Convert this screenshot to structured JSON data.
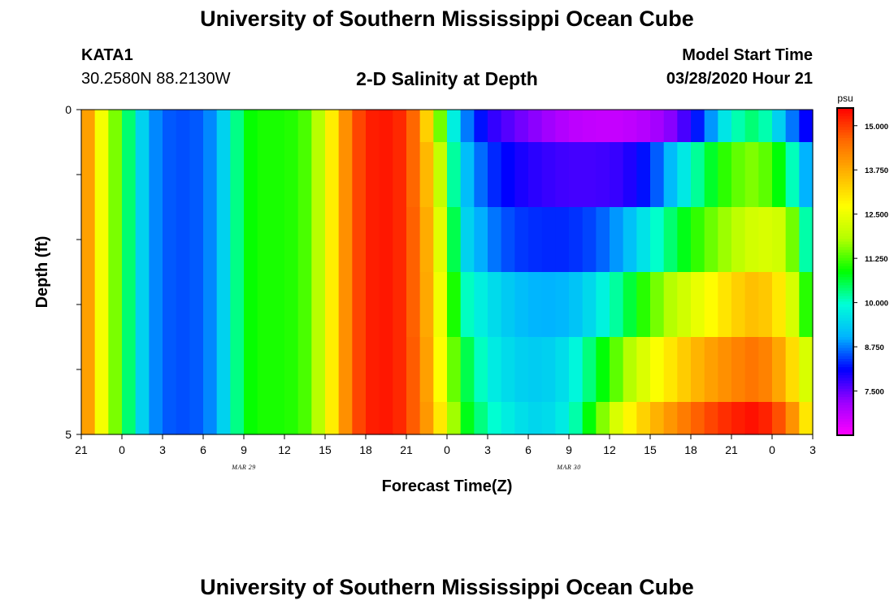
{
  "header": {
    "title": "University of Southern Mississippi Ocean Cube",
    "station_id": "KATA1",
    "station_location": "30.2580N 88.2130W",
    "plot_title": "2-D Salinity at Depth",
    "model_start_label": "Model Start Time",
    "model_start_value": "03/28/2020 Hour 21"
  },
  "footer": {
    "title": "University of Southern Mississippi Ocean Cube"
  },
  "chart_data": {
    "type": "heatmap",
    "title": "2-D Salinity at Depth",
    "xlabel": "Forecast Time(Z)",
    "ylabel": "Depth (ft)",
    "x_tick_labels": [
      "21",
      "0",
      "3",
      "6",
      "9",
      "12",
      "15",
      "18",
      "21",
      "0",
      "3",
      "6",
      "9",
      "12",
      "15",
      "18",
      "21",
      "0",
      "3"
    ],
    "x_date_labels": [
      {
        "label": "MAR 29",
        "at_tick": 4
      },
      {
        "label": "MAR 30",
        "at_tick": 12
      }
    ],
    "y_tick_labels": [
      {
        "label": "0",
        "depth": 0
      },
      {
        "label": "5",
        "depth": 5
      }
    ],
    "y_minor_ticks": [
      1,
      2,
      3,
      4
    ],
    "ylim": [
      0,
      5
    ],
    "colorbar": {
      "unit": "psu",
      "min": 6.25,
      "max": 15.5,
      "tick_labels": [
        "15.000",
        "13.750",
        "12.500",
        "11.250",
        "10.000",
        "8.750",
        "7.500"
      ],
      "tick_values": [
        15.0,
        13.75,
        12.5,
        11.25,
        10.0,
        8.75,
        7.5
      ],
      "colors": [
        "#ff00ff",
        "#9d00ff",
        "#0000ff",
        "#00b4ff",
        "#00ffd8",
        "#00ff00",
        "#b4ff00",
        "#ffff00",
        "#ffb400",
        "#ff6a00",
        "#ff0000"
      ]
    },
    "time_keypoints_hours": [
      0,
      1,
      2,
      3,
      4,
      5,
      6,
      7,
      8,
      9,
      10,
      11,
      12,
      13,
      14,
      15,
      16,
      17,
      18,
      19,
      20,
      21,
      22,
      23,
      24,
      25,
      26,
      27,
      28,
      30,
      32,
      34,
      36,
      38,
      40,
      42,
      44,
      46,
      48,
      50,
      52,
      54
    ],
    "rows": [
      {
        "depth_range": [
          0.0,
          0.5
        ],
        "salinity": [
          14.6,
          13.2,
          12.0,
          11.0,
          9.8,
          9.0,
          8.6,
          8.5,
          8.5,
          8.6,
          9.0,
          9.8,
          10.8,
          11.0,
          11.0,
          11.0,
          11.1,
          11.4,
          12.3,
          13.6,
          14.6,
          15.2,
          15.3,
          15.3,
          15.0,
          14.2,
          12.4,
          10.5,
          9.0,
          7.9,
          7.5,
          7.2,
          6.9,
          6.8,
          6.8,
          7.0,
          7.4,
          8.5,
          10.0,
          10.5,
          9.0,
          7.8
        ]
      },
      {
        "depth_range": [
          0.5,
          1.5
        ],
        "salinity": [
          14.6,
          13.2,
          12.0,
          11.0,
          9.8,
          9.0,
          8.6,
          8.5,
          8.5,
          8.6,
          9.0,
          9.8,
          10.8,
          11.0,
          11.0,
          11.0,
          11.1,
          11.4,
          12.3,
          13.6,
          14.6,
          15.2,
          15.3,
          15.3,
          15.0,
          14.2,
          13.0,
          11.0,
          9.4,
          8.4,
          8.0,
          7.8,
          7.7,
          7.7,
          7.8,
          8.3,
          9.4,
          10.5,
          11.3,
          11.6,
          10.6,
          8.5
        ]
      },
      {
        "depth_range": [
          1.5,
          2.5
        ],
        "salinity": [
          14.6,
          13.2,
          12.0,
          11.0,
          9.8,
          9.0,
          8.6,
          8.5,
          8.5,
          8.6,
          9.0,
          9.8,
          10.8,
          11.0,
          11.0,
          11.0,
          11.1,
          11.4,
          12.3,
          13.6,
          14.6,
          15.2,
          15.3,
          15.3,
          15.0,
          14.3,
          13.2,
          11.5,
          9.6,
          8.8,
          8.4,
          8.3,
          8.3,
          8.5,
          9.0,
          9.8,
          10.6,
          11.3,
          11.8,
          12.3,
          12.1,
          9.5
        ]
      },
      {
        "depth_range": [
          2.5,
          3.5
        ],
        "salinity": [
          14.6,
          13.2,
          12.0,
          11.0,
          9.8,
          9.0,
          8.6,
          8.5,
          8.5,
          8.6,
          9.0,
          9.8,
          10.8,
          11.0,
          11.0,
          11.0,
          11.1,
          11.4,
          12.3,
          13.6,
          14.6,
          15.2,
          15.3,
          15.3,
          15.0,
          14.3,
          13.3,
          11.8,
          10.2,
          9.6,
          9.2,
          9.0,
          9.1,
          9.6,
          10.4,
          11.3,
          12.0,
          12.6,
          13.2,
          13.6,
          12.8,
          10.5
        ]
      },
      {
        "depth_range": [
          3.5,
          4.5
        ],
        "salinity": [
          14.6,
          13.2,
          12.0,
          11.0,
          9.8,
          9.0,
          8.6,
          8.5,
          8.5,
          8.6,
          9.0,
          9.8,
          10.8,
          11.0,
          11.0,
          11.0,
          11.1,
          11.4,
          12.3,
          13.6,
          14.6,
          15.2,
          15.3,
          15.3,
          15.0,
          14.4,
          13.4,
          12.0,
          10.8,
          9.8,
          9.4,
          9.3,
          9.6,
          10.6,
          11.6,
          12.5,
          13.2,
          13.8,
          14.2,
          14.5,
          13.6,
          11.8
        ]
      },
      {
        "depth_range": [
          4.5,
          5.0
        ],
        "salinity": [
          14.6,
          13.2,
          12.0,
          11.0,
          9.8,
          9.0,
          8.6,
          8.5,
          8.5,
          8.6,
          9.0,
          9.8,
          10.8,
          11.0,
          11.0,
          11.0,
          11.1,
          11.4,
          12.3,
          13.6,
          14.6,
          15.2,
          15.3,
          15.3,
          15.0,
          14.4,
          13.6,
          12.4,
          11.0,
          10.1,
          9.6,
          9.4,
          9.8,
          11.2,
          12.6,
          13.5,
          14.2,
          14.8,
          15.2,
          15.4,
          14.6,
          12.5
        ]
      }
    ]
  }
}
